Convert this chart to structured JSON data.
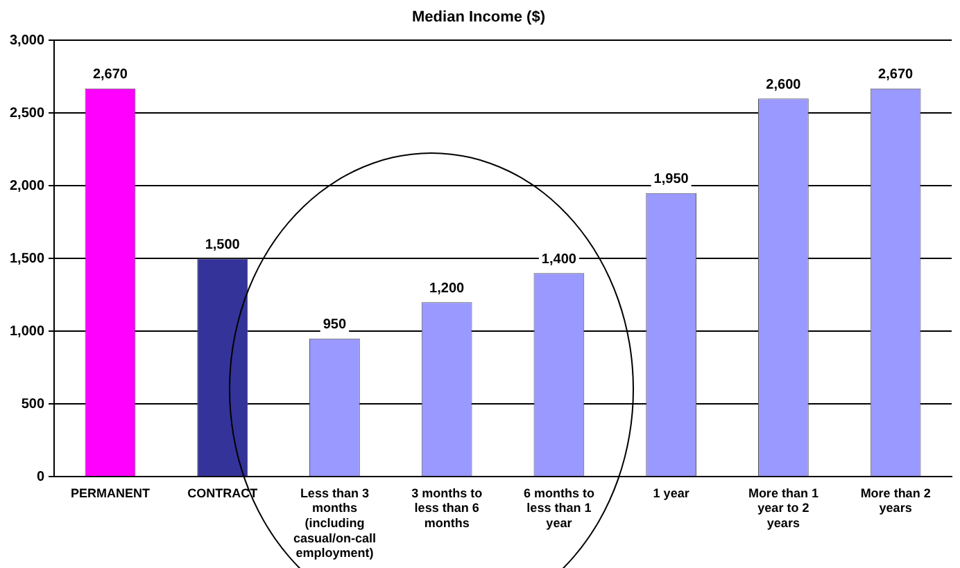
{
  "chart_data": {
    "type": "bar",
    "title": "Median Income ($)",
    "categories": [
      "PERMANENT",
      "CONTRACT",
      "Less than 3 months (including casual/on-call employment)",
      "3 months to less than 6 months",
      "6 months to less than 1 year",
      "1 year",
      "More than 1 year to 2 years",
      "More than 2 years"
    ],
    "values": [
      2670,
      1500,
      950,
      1200,
      1400,
      1950,
      2600,
      2670
    ],
    "colors": [
      "#ff00ff",
      "#333399",
      "#9999ff",
      "#9999ff",
      "#9999ff",
      "#9999ff",
      "#9999ff",
      "#9999ff"
    ],
    "value_labels": [
      "2,670",
      "1,500",
      "950",
      "1,200",
      "1,400",
      "1,950",
      "2,600",
      "2,670"
    ],
    "ylim": [
      0,
      3000
    ],
    "yticks": [
      0,
      500,
      {
        "value": 1000,
        "label": "1,000"
      },
      {
        "value": 1500,
        "label": "1,500"
      },
      {
        "value": 2000,
        "label": "2,000"
      },
      {
        "value": 2500,
        "label": "2,500"
      },
      {
        "value": 3000,
        "label": "3,000"
      }
    ],
    "grid": "y",
    "data_labels": true,
    "legend": false
  }
}
